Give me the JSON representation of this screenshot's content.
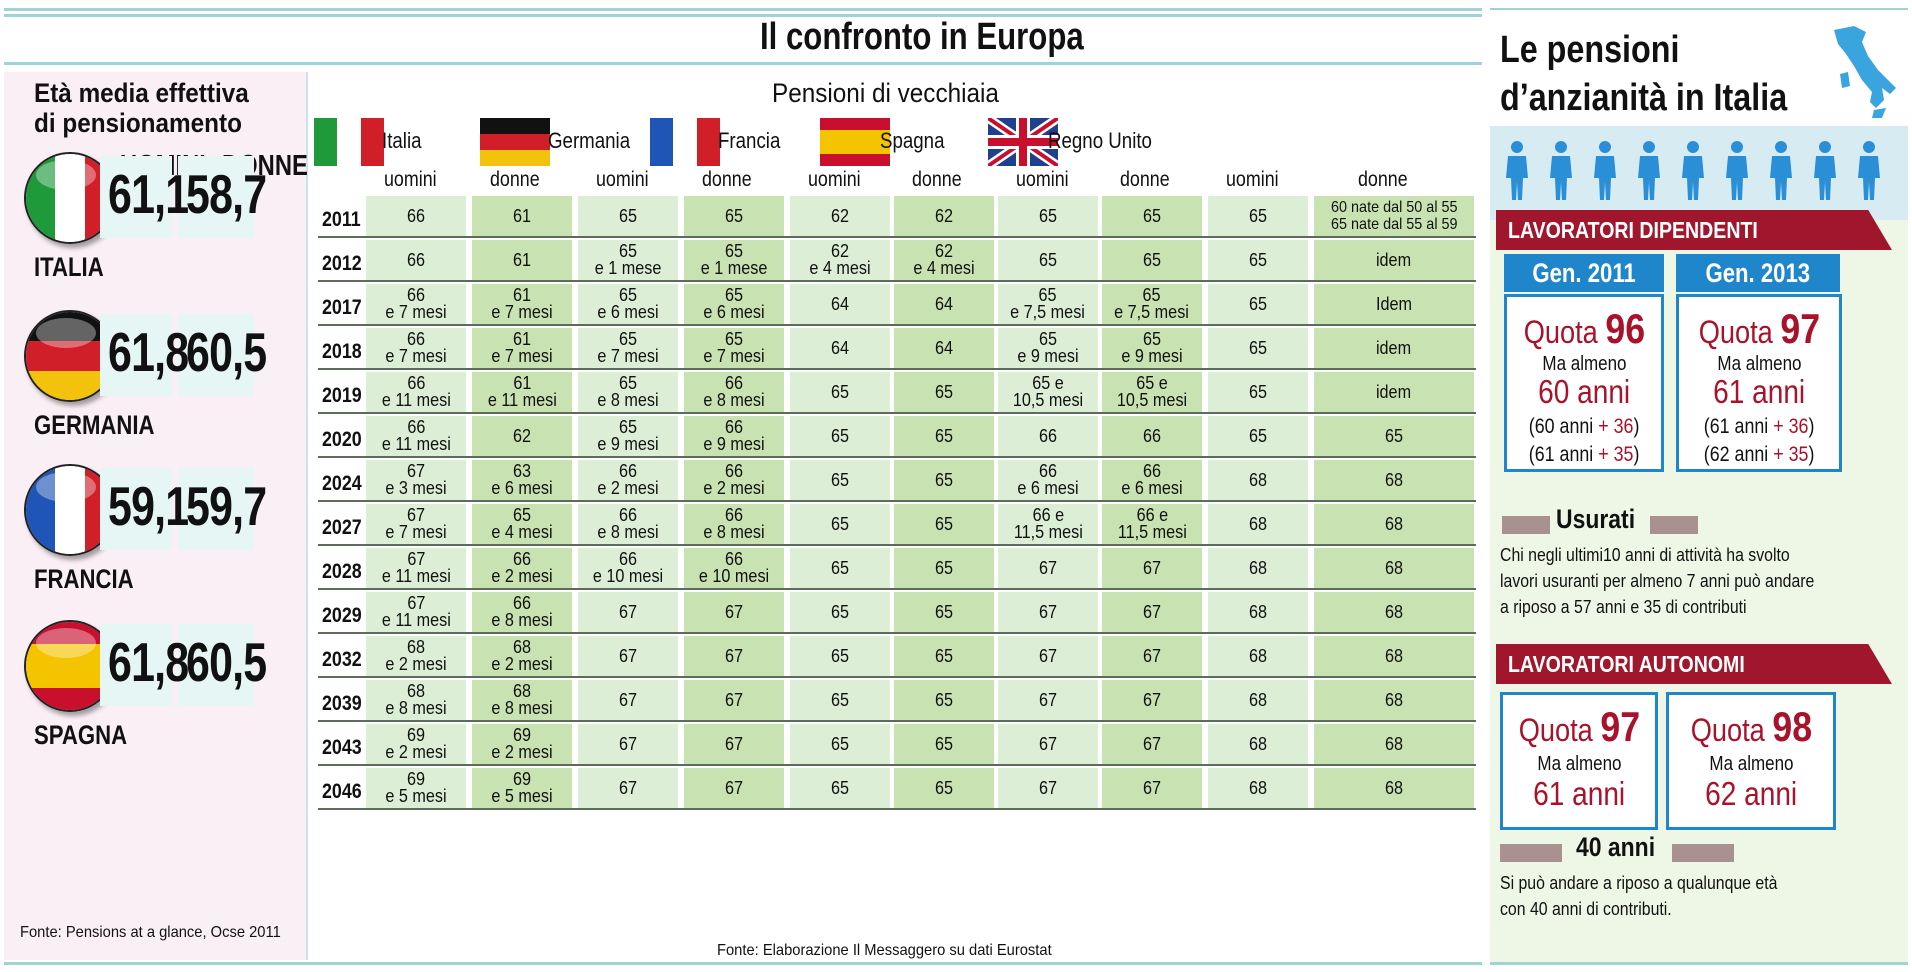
{
  "main_title": "Il confronto in Europa",
  "left_panel": {
    "title_line1": "Età media effettiva",
    "title_line2": "di pensionamento",
    "col_uomini": "UOMINI",
    "col_donne": "DONNE",
    "source": "Fonte: Pensions at a glance, Ocse 2011",
    "countries": [
      {
        "name": "ITALIA",
        "uomini": "61,1",
        "donne": "58,7",
        "colors": [
          "#1f9a3a",
          "#ffffff",
          "#d11f2a"
        ]
      },
      {
        "name": "GERMANIA",
        "uomini": "61,8",
        "donne": "60,5",
        "colors": [
          "#111111",
          "#d11f2a",
          "#f2c20c"
        ]
      },
      {
        "name": "FRANCIA",
        "uomini": "59,1",
        "donne": "59,7",
        "colors": [
          "#1f55b6",
          "#ffffff",
          "#d11f2a"
        ]
      },
      {
        "name": "SPAGNA",
        "uomini": "61,8",
        "donne": "60,5",
        "colors": [
          "#c8102e",
          "#f5c400",
          "#c8102e"
        ]
      }
    ]
  },
  "chart_data": {
    "type": "table",
    "title": "Pensioni di vecchiaia",
    "source": "Fonte: Elaborazione Il Messaggero su dati Eurostat",
    "countries": [
      "Italia",
      "Germania",
      "Francia",
      "Spagna",
      "Regno Unito"
    ],
    "subcolumns": [
      "uomini",
      "donne",
      "uomini",
      "donne",
      "uomini",
      "donne",
      "uomini",
      "donne",
      "uomini",
      "donne"
    ],
    "rows": [
      {
        "year": "2011",
        "values": [
          "66",
          "61",
          "65",
          "65",
          "62",
          "62",
          "65",
          "65",
          "65",
          "60 nate dal 50 al 55\n65 nate dal 55 al 59"
        ]
      },
      {
        "year": "2012",
        "values": [
          "66",
          "61",
          "65\ne 1 mese",
          "65\ne 1 mese",
          "62\ne 4 mesi",
          "62\ne 4 mesi",
          "65",
          "65",
          "65",
          "idem"
        ]
      },
      {
        "year": "2017",
        "values": [
          "66\ne 7 mesi",
          "61\ne 7 mesi",
          "65\ne 6 mesi",
          "65\ne 6 mesi",
          "64",
          "64",
          "65\ne 7,5 mesi",
          "65\ne 7,5 mesi",
          "65",
          "Idem"
        ]
      },
      {
        "year": "2018",
        "values": [
          "66\ne 7 mesi",
          "61\ne 7 mesi",
          "65\ne 7 mesi",
          "65\ne 7 mesi",
          "64",
          "64",
          "65\ne 9 mesi",
          "65\ne 9 mesi",
          "65",
          "idem"
        ]
      },
      {
        "year": "2019",
        "values": [
          "66\ne 11 mesi",
          "61\ne 11 mesi",
          "65\ne 8 mesi",
          "66\ne 8 mesi",
          "65",
          "65",
          "65 e\n10,5 mesi",
          "65 e\n10,5 mesi",
          "65",
          "idem"
        ]
      },
      {
        "year": "2020",
        "values": [
          "66\ne 11 mesi",
          "62",
          "65\ne 9 mesi",
          "66\ne 9 mesi",
          "65",
          "65",
          "66",
          "66",
          "65",
          "65"
        ]
      },
      {
        "year": "2024",
        "values": [
          "67\ne 3 mesi",
          "63\ne 6 mesi",
          "66\ne 2 mesi",
          "66\ne 2 mesi",
          "65",
          "65",
          "66\ne 6 mesi",
          "66\ne 6 mesi",
          "68",
          "68"
        ]
      },
      {
        "year": "2027",
        "values": [
          "67\ne 7 mesi",
          "65\ne 4 mesi",
          "66\ne 8 mesi",
          "66\ne 8 mesi",
          "65",
          "65",
          "66 e\n11,5 mesi",
          "66 e\n11,5 mesi",
          "68",
          "68"
        ]
      },
      {
        "year": "2028",
        "values": [
          "67\ne 11 mesi",
          "66\ne 2 mesi",
          "66\ne 10 mesi",
          "66\ne 10 mesi",
          "65",
          "65",
          "67",
          "67",
          "68",
          "68"
        ]
      },
      {
        "year": "2029",
        "values": [
          "67\ne 11 mesi",
          "66\ne 8 mesi",
          "67",
          "67",
          "65",
          "65",
          "67",
          "67",
          "68",
          "68"
        ]
      },
      {
        "year": "2032",
        "values": [
          "68\ne 2 mesi",
          "68\ne 2 mesi",
          "67",
          "67",
          "65",
          "65",
          "67",
          "67",
          "68",
          "68"
        ]
      },
      {
        "year": "2039",
        "values": [
          "68\ne 8 mesi",
          "68\ne 8 mesi",
          "67",
          "67",
          "65",
          "65",
          "67",
          "67",
          "68",
          "68"
        ]
      },
      {
        "year": "2043",
        "values": [
          "69\ne 2 mesi",
          "69\ne 2 mesi",
          "67",
          "67",
          "65",
          "65",
          "67",
          "67",
          "68",
          "68"
        ]
      },
      {
        "year": "2046",
        "values": [
          "69\ne 5 mesi",
          "69\ne 5 mesi",
          "67",
          "67",
          "65",
          "65",
          "67",
          "67",
          "68",
          "68"
        ]
      }
    ]
  },
  "right_panel": {
    "title_line1": "Le pensioni",
    "title_line2": "d’anzianità in Italia",
    "dipendenti": {
      "label": "LAVORATORI DIPENDENTI",
      "boxes": [
        {
          "header": "Gen. 2011",
          "quota_word": "Quota",
          "quota_num": "96",
          "almeno": "Ma almeno",
          "anni": "60 anni",
          "l1_pre": "(60 anni ",
          "l1_plus": "+ 36",
          "l1_post": ")",
          "l2_pre": "(61 anni ",
          "l2_plus": "+ 35",
          "l2_post": ")"
        },
        {
          "header": "Gen. 2013",
          "quota_word": "Quota",
          "quota_num": "97",
          "almeno": "Ma almeno",
          "anni": "61 anni",
          "l1_pre": "(61 anni ",
          "l1_plus": "+ 36",
          "l1_post": ")",
          "l2_pre": "(62 anni ",
          "l2_plus": "+ 35",
          "l2_post": ")"
        }
      ]
    },
    "usurati": {
      "title": "Usurati",
      "text1": "Chi negli ultimi10 anni di attività ha svolto",
      "text2": "lavori usuranti per almeno 7 anni può andare",
      "text3": "a riposo a 57 anni e 35 di contributi"
    },
    "autonomi": {
      "label": "LAVORATORI AUTONOMI",
      "boxes": [
        {
          "quota_word": "Quota",
          "quota_num": "97",
          "almeno": "Ma almeno",
          "anni": "61 anni"
        },
        {
          "quota_word": "Quota",
          "quota_num": "98",
          "almeno": "Ma almeno",
          "anni": "62 anni"
        }
      ]
    },
    "quaranta": {
      "title": "40 anni",
      "text1": "Si può andare a riposo a qualunque età",
      "text2": "con 40 anni  di contributi."
    }
  }
}
